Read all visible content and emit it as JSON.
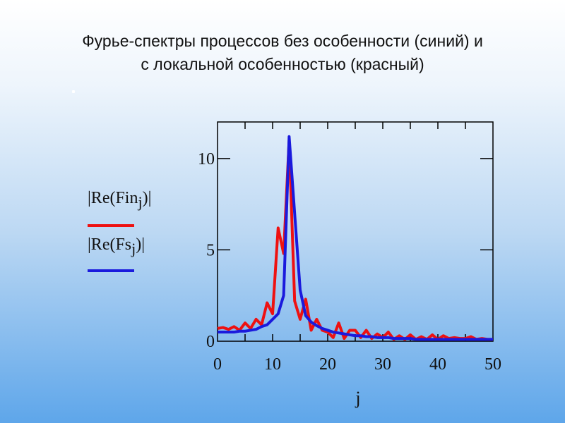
{
  "title_line1": "Фурье-спектры процессов без особенности (синий) и",
  "title_line2": "с локальной особенностью (красный)",
  "legend": {
    "red_expr": "|Re(Fin",
    "red_sub": "j",
    "red_close": ")|",
    "blue_expr": "|Re(Fs",
    "blue_sub": "j",
    "blue_close": ")|"
  },
  "colors": {
    "red": "#ee1111",
    "blue": "#1a1add"
  },
  "chart_data": {
    "type": "line",
    "xlabel": "j",
    "ylabel": "",
    "xlim": [
      0,
      50
    ],
    "ylim": [
      0,
      12
    ],
    "x_ticks": [
      "0",
      "10",
      "20",
      "30",
      "40",
      "50"
    ],
    "y_ticks": [
      "0",
      "5",
      "10"
    ],
    "series": [
      {
        "color": "#ee1111",
        "x": [
          0,
          1,
          2,
          3,
          4,
          5,
          6,
          7,
          8,
          9,
          10,
          11,
          12,
          13,
          14,
          15,
          16,
          17,
          18,
          19,
          20,
          21,
          22,
          23,
          24,
          25,
          26,
          27,
          28,
          29,
          30,
          31,
          32,
          33,
          34,
          35,
          36,
          37,
          38,
          39,
          40,
          41,
          42,
          43,
          44,
          45,
          46,
          47,
          48,
          49,
          50
        ],
        "values": [
          0.7,
          0.75,
          0.65,
          0.8,
          0.6,
          1.0,
          0.7,
          1.2,
          0.9,
          2.1,
          1.5,
          6.2,
          4.8,
          11.0,
          2.2,
          1.2,
          2.3,
          0.6,
          1.2,
          0.6,
          0.5,
          0.2,
          1.0,
          0.15,
          0.6,
          0.6,
          0.2,
          0.6,
          0.15,
          0.4,
          0.2,
          0.5,
          0.1,
          0.3,
          0.1,
          0.35,
          0.1,
          0.25,
          0.1,
          0.35,
          0.1,
          0.3,
          0.15,
          0.2,
          0.15,
          0.15,
          0.25,
          0.1,
          0.15,
          0.1,
          0.1
        ]
      },
      {
        "color": "#1a1add",
        "x": [
          0,
          1,
          2,
          3,
          4,
          5,
          6,
          7,
          8,
          9,
          10,
          11,
          12,
          13,
          14,
          15,
          16,
          17,
          18,
          19,
          20,
          21,
          22,
          23,
          24,
          25,
          26,
          27,
          28,
          29,
          30,
          31,
          32,
          33,
          34,
          35,
          36,
          37,
          38,
          39,
          40,
          41,
          42,
          43,
          44,
          45,
          46,
          47,
          48,
          49,
          50
        ],
        "values": [
          0.5,
          0.5,
          0.5,
          0.5,
          0.55,
          0.55,
          0.6,
          0.65,
          0.8,
          0.9,
          1.2,
          1.5,
          2.5,
          11.2,
          7.0,
          2.8,
          1.4,
          1.05,
          0.85,
          0.7,
          0.6,
          0.5,
          0.45,
          0.4,
          0.35,
          0.3,
          0.3,
          0.25,
          0.25,
          0.2,
          0.2,
          0.2,
          0.15,
          0.15,
          0.15,
          0.15,
          0.1,
          0.1,
          0.1,
          0.1,
          0.1,
          0.1,
          0.1,
          0.1,
          0.1,
          0.1,
          0.1,
          0.1,
          0.1,
          0.1,
          0.1
        ]
      }
    ]
  }
}
